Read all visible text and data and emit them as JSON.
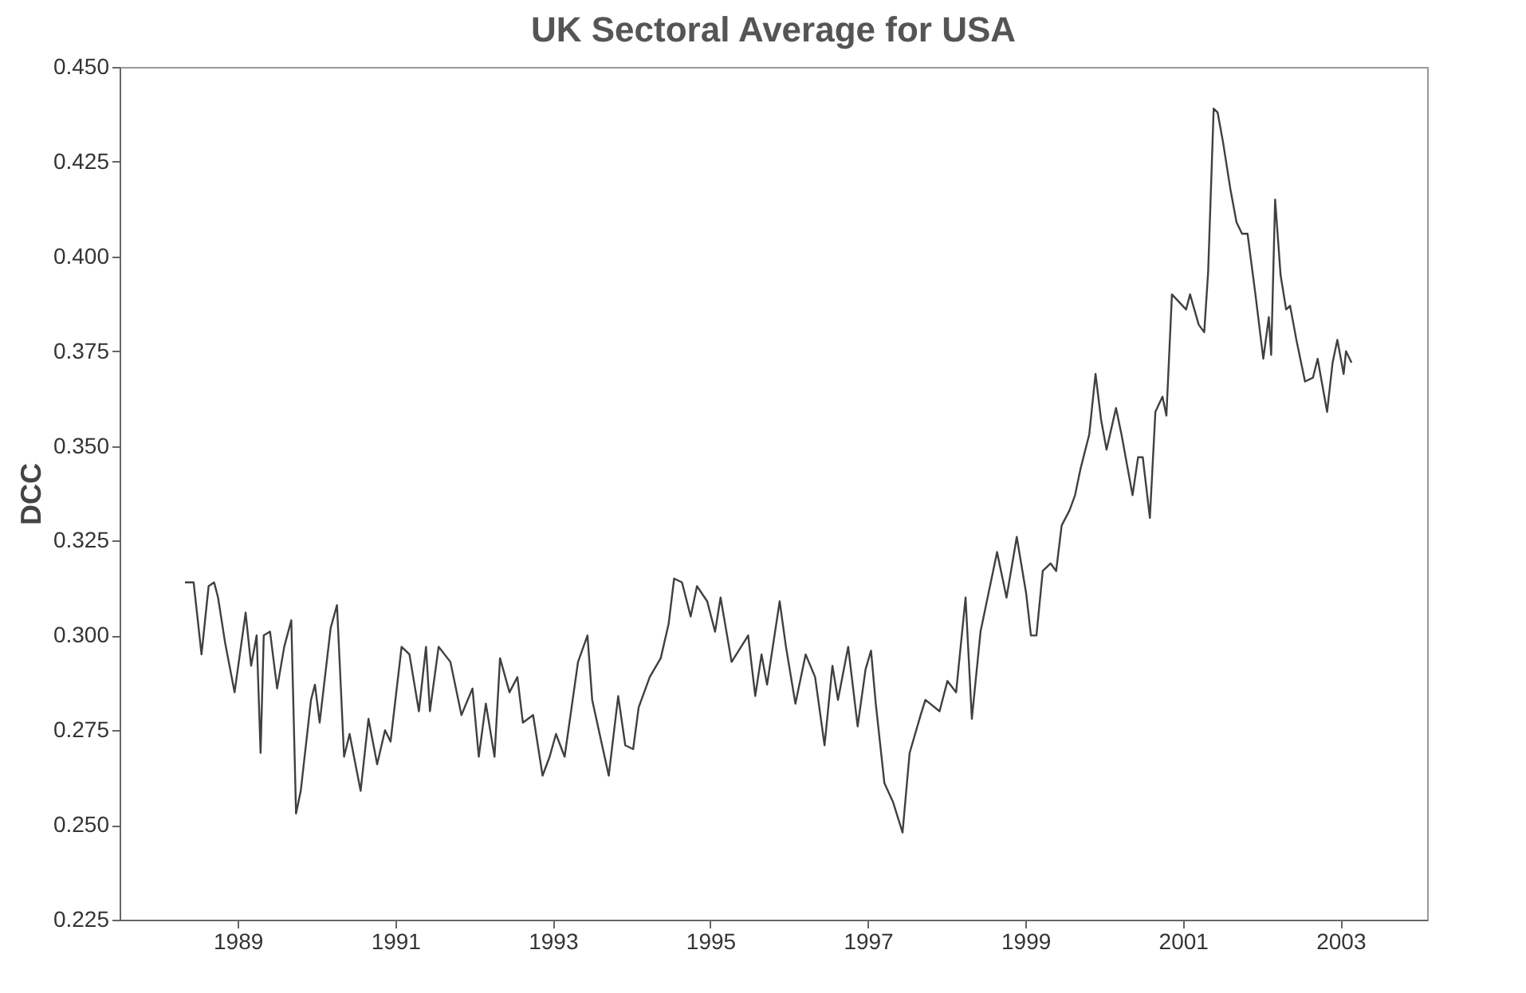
{
  "chart_data": {
    "type": "line",
    "title": "UK Sectoral Average for USA",
    "ylabel": "DCC",
    "x": [
      1988.33,
      1988.44,
      1988.54,
      1988.63,
      1988.7,
      1988.75,
      1988.84,
      1988.96,
      1989.1,
      1989.17,
      1989.24,
      1989.29,
      1989.33,
      1989.41,
      1989.5,
      1989.59,
      1989.68,
      1989.74,
      1989.8,
      1989.93,
      1989.98,
      1990.04,
      1990.18,
      1990.26,
      1990.35,
      1990.42,
      1990.56,
      1990.66,
      1990.77,
      1990.87,
      1990.94,
      1991.08,
      1991.18,
      1991.3,
      1991.39,
      1991.44,
      1991.55,
      1991.7,
      1991.84,
      1991.98,
      1992.06,
      1992.15,
      1992.26,
      1992.33,
      1992.45,
      1992.55,
      1992.62,
      1992.75,
      1992.87,
      1992.96,
      1993.04,
      1993.15,
      1993.32,
      1993.44,
      1993.5,
      1993.71,
      1993.83,
      1993.92,
      1994.02,
      1994.09,
      1994.23,
      1994.37,
      1994.47,
      1994.54,
      1994.64,
      1994.75,
      1994.83,
      1994.96,
      1995.06,
      1995.13,
      1995.27,
      1995.48,
      1995.57,
      1995.65,
      1995.72,
      1995.88,
      1995.96,
      1996.08,
      1996.21,
      1996.33,
      1996.45,
      1996.55,
      1996.62,
      1996.75,
      1996.87,
      1996.97,
      1997.04,
      1997.1,
      1997.21,
      1997.32,
      1997.44,
      1997.53,
      1997.67,
      1997.73,
      1997.91,
      1998.01,
      1998.12,
      1998.24,
      1998.32,
      1998.43,
      1998.53,
      1998.64,
      1998.76,
      1998.89,
      1999.01,
      1999.07,
      1999.14,
      1999.22,
      1999.32,
      1999.39,
      1999.46,
      1999.56,
      1999.63,
      1999.7,
      1999.81,
      1999.89,
      1999.96,
      2000.03,
      2000.15,
      2000.22,
      2000.36,
      2000.43,
      2000.49,
      2000.58,
      2000.65,
      2000.74,
      2000.79,
      2000.86,
      2000.95,
      2001.04,
      2001.09,
      2001.2,
      2001.27,
      2001.32,
      2001.39,
      2001.44,
      2001.51,
      2001.6,
      2001.68,
      2001.75,
      2001.82,
      2001.92,
      2002.02,
      2002.09,
      2002.12,
      2002.17,
      2002.24,
      2002.31,
      2002.36,
      2002.44,
      2002.55,
      2002.65,
      2002.71,
      2002.83,
      2002.9,
      2002.96,
      2003.04,
      2003.07,
      2003.14
    ],
    "series": [
      {
        "color": "#404040",
        "values": [
          0.314,
          0.314,
          0.295,
          0.313,
          0.314,
          0.31,
          0.298,
          0.285,
          0.306,
          0.292,
          0.3,
          0.269,
          0.3,
          0.301,
          0.286,
          0.297,
          0.304,
          0.253,
          0.259,
          0.283,
          0.287,
          0.277,
          0.302,
          0.308,
          0.268,
          0.274,
          0.259,
          0.278,
          0.266,
          0.275,
          0.272,
          0.297,
          0.295,
          0.28,
          0.297,
          0.28,
          0.297,
          0.293,
          0.279,
          0.286,
          0.268,
          0.282,
          0.268,
          0.294,
          0.285,
          0.289,
          0.277,
          0.279,
          0.263,
          0.268,
          0.274,
          0.268,
          0.293,
          0.3,
          0.283,
          0.263,
          0.284,
          0.271,
          0.27,
          0.281,
          0.289,
          0.294,
          0.303,
          0.315,
          0.314,
          0.305,
          0.313,
          0.309,
          0.301,
          0.31,
          0.293,
          0.3,
          0.284,
          0.295,
          0.287,
          0.309,
          0.297,
          0.282,
          0.295,
          0.289,
          0.271,
          0.292,
          0.283,
          0.297,
          0.276,
          0.291,
          0.296,
          0.282,
          0.261,
          0.256,
          0.248,
          0.269,
          0.279,
          0.283,
          0.28,
          0.288,
          0.285,
          0.31,
          0.278,
          0.301,
          0.311,
          0.322,
          0.31,
          0.326,
          0.311,
          0.3,
          0.3,
          0.317,
          0.319,
          0.317,
          0.329,
          0.333,
          0.337,
          0.344,
          0.353,
          0.369,
          0.357,
          0.349,
          0.36,
          0.353,
          0.337,
          0.347,
          0.347,
          0.331,
          0.359,
          0.363,
          0.358,
          0.39,
          0.388,
          0.386,
          0.39,
          0.382,
          0.38,
          0.396,
          0.439,
          0.438,
          0.43,
          0.418,
          0.409,
          0.406,
          0.406,
          0.39,
          0.373,
          0.384,
          0.374,
          0.415,
          0.395,
          0.386,
          0.387,
          0.378,
          0.367,
          0.368,
          0.373,
          0.359,
          0.372,
          0.378,
          0.369,
          0.375,
          0.372
        ]
      }
    ],
    "xlim": [
      1987.5,
      2004.1
    ],
    "xticks": [
      1989,
      1991,
      1993,
      1995,
      1997,
      1999,
      2001,
      2003
    ],
    "ylim": [
      0.225,
      0.45
    ],
    "yticks": [
      {
        "value": 0.225,
        "label": "0.225"
      },
      {
        "value": 0.25,
        "label": "0.250"
      },
      {
        "value": 0.275,
        "label": "0.275"
      },
      {
        "value": 0.3,
        "label": "0.300"
      },
      {
        "value": 0.325,
        "label": "0.325"
      },
      {
        "value": 0.35,
        "label": "0.350"
      },
      {
        "value": 0.375,
        "label": "0.375"
      },
      {
        "value": 0.4,
        "label": "0.400"
      },
      {
        "value": 0.425,
        "label": "0.425"
      },
      {
        "value": 0.45,
        "label": "0.450"
      }
    ],
    "grid": false,
    "marker": "none",
    "line_style": "solid"
  }
}
